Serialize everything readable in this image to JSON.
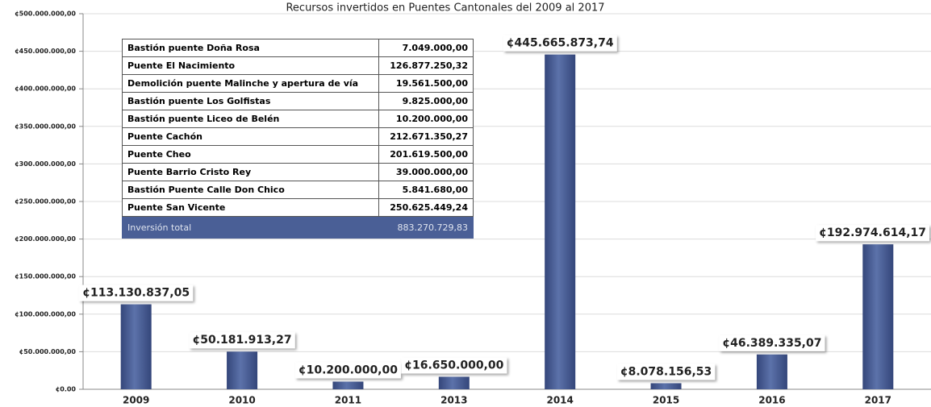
{
  "chart_data": {
    "type": "bar",
    "title": "Recursos invertidos en Puentes Cantonales del 2009 al 2017",
    "categories": [
      "2009",
      "2010",
      "2011",
      "2013",
      "2014",
      "2015",
      "2016",
      "2017"
    ],
    "values": [
      113130837.05,
      50181913.27,
      10200000,
      16650000,
      445665873.74,
      8078156.53,
      46389335.07,
      192974614.17
    ],
    "value_labels": [
      "¢113.130.837,05",
      "¢50.181.913,27",
      "¢10.200.000,00",
      "¢16.650.000,00",
      "¢445.665.873,74",
      "¢8.078.156,53",
      "¢46.389.335,07",
      "¢192.974.614,17"
    ],
    "color": "#4a5f96",
    "ylim": [
      0,
      500000000
    ],
    "yticks": [
      {
        "value": 0,
        "label": "¢0.00"
      },
      {
        "value": 50000000,
        "label": "¢50.000.000,00"
      },
      {
        "value": 100000000,
        "label": "¢100.000.000,00"
      },
      {
        "value": 150000000,
        "label": "¢150.000.000,00"
      },
      {
        "value": 200000000,
        "label": "¢200.000.000,00"
      },
      {
        "value": 250000000,
        "label": "¢250.000.000,00"
      },
      {
        "value": 300000000,
        "label": "¢300.000.000,00"
      },
      {
        "value": 350000000,
        "label": "¢350.000.000,00"
      },
      {
        "value": 400000000,
        "label": "¢400.000.000,00"
      },
      {
        "value": 450000000,
        "label": "¢450.000.000,00"
      },
      {
        "value": 500000000,
        "label": "¢500.000.000,00"
      }
    ],
    "grid": true
  },
  "table": {
    "rows": [
      [
        "Bastión puente Doña Rosa",
        "7.049.000,00"
      ],
      [
        "Puente El Nacimiento",
        "126.877.250,32"
      ],
      [
        "Demolición puente Malinche y apertura de vía",
        "19.561.500,00"
      ],
      [
        "Bastión puente Los Golfistas",
        "9.825.000,00"
      ],
      [
        "Bastión puente Liceo de Belén",
        "10.200.000,00"
      ],
      [
        "Puente Cachón",
        "212.671.350,27"
      ],
      [
        "Puente Cheo",
        "201.619.500,00"
      ],
      [
        "Puente Barrio Cristo Rey",
        "39.000.000,00"
      ],
      [
        "Bastión Puente Calle Don Chico",
        "5.841.680,00"
      ],
      [
        "Puente San Vicente",
        "250.625.449,24"
      ]
    ],
    "total": [
      "Inversión total",
      "883.270.729,83"
    ]
  }
}
